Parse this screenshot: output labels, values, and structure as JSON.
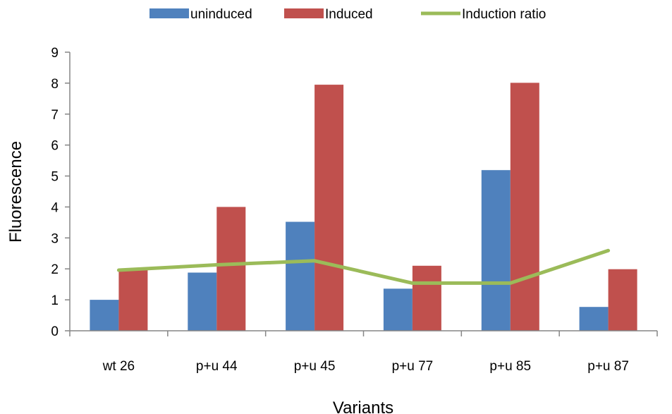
{
  "chart_data": {
    "type": "bar",
    "title": "",
    "xlabel": "Variants",
    "ylabel": "Fluorescence",
    "ylim": [
      0,
      9
    ],
    "yticks": [
      0,
      1,
      2,
      3,
      4,
      5,
      6,
      7,
      8,
      9
    ],
    "categories": [
      "wt 26",
      "p+u 44",
      "p+u 45",
      "p+u 77",
      "p+u 85",
      "p+u 87"
    ],
    "series": [
      {
        "name": "uninduced",
        "type": "bar",
        "color": "#4f81bd",
        "values": [
          1.0,
          1.88,
          3.52,
          1.36,
          5.19,
          0.77
        ]
      },
      {
        "name": "Induced",
        "type": "bar",
        "color": "#c0504d",
        "values": [
          1.96,
          4.0,
          7.95,
          2.1,
          8.01,
          1.99
        ]
      },
      {
        "name": "Induction ratio",
        "type": "line",
        "color": "#9bbb59",
        "values": [
          1.96,
          2.13,
          2.26,
          1.54,
          1.54,
          2.59
        ]
      }
    ],
    "legend": {
      "position": "top"
    },
    "grid": false
  }
}
